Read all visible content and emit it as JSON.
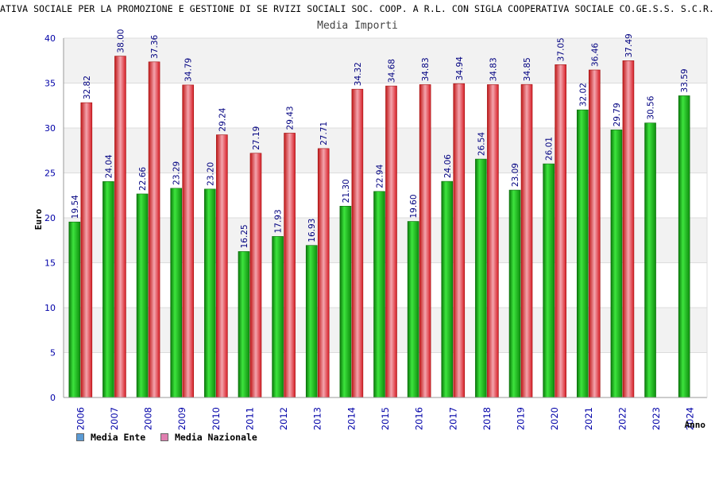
{
  "chart_data": {
    "type": "bar",
    "title": "ATIVA SOCIALE PER LA PROMOZIONE E GESTIONE DI SE RVIZI SOCIALI SOC. COOP. A R.L. CON SIGLA COOPERATIVA SOCIALE CO.GE.S.S. S.C.R.L",
    "subtitle": "Media Importi",
    "xlabel": "Anno",
    "ylabel": "Euro",
    "ylim": [
      0,
      40
    ],
    "yticks": [
      0,
      5,
      10,
      15,
      20,
      25,
      30,
      35,
      40
    ],
    "grid": true,
    "legend_position": "bottom-left",
    "categories": [
      "2006",
      "2007",
      "2008",
      "2009",
      "2010",
      "2011",
      "2012",
      "2013",
      "2014",
      "2015",
      "2016",
      "2017",
      "2018",
      "2019",
      "2020",
      "2021",
      "2022",
      "2023",
      "2024"
    ],
    "series": [
      {
        "name": "Media Ente",
        "color": "#1faa1f",
        "legend_color": "#5b9bd5",
        "values": [
          19.54,
          24.04,
          22.66,
          23.29,
          23.2,
          16.25,
          17.93,
          16.93,
          21.3,
          22.94,
          19.6,
          24.06,
          26.54,
          23.09,
          26.01,
          32.02,
          29.79,
          30.56,
          33.59
        ],
        "labels": [
          "19.54",
          "24.04",
          "22.66",
          "23.29",
          "23.20",
          "16.25",
          "17.93",
          "16.93",
          "21.30",
          "22.94",
          "19.60",
          "24.06",
          "26.54",
          "23.09",
          "26.01",
          "32.02",
          "29.79",
          "30.56",
          "33.59"
        ]
      },
      {
        "name": "Media Nazionale",
        "color": "#e8232a",
        "legend_color": "#e07fb0",
        "values": [
          32.82,
          38.0,
          37.36,
          34.79,
          29.24,
          27.19,
          29.43,
          27.71,
          34.32,
          34.68,
          34.83,
          34.94,
          34.83,
          34.85,
          37.05,
          36.46,
          37.49,
          null,
          null
        ],
        "labels": [
          "32.82",
          "38.00",
          "37.36",
          "34.79",
          "29.24",
          "27.19",
          "29.43",
          "27.71",
          "34.32",
          "34.68",
          "34.83",
          "34.94",
          "34.83",
          "34.85",
          "37.05",
          "36.46",
          "37.49",
          "",
          ""
        ]
      }
    ]
  }
}
